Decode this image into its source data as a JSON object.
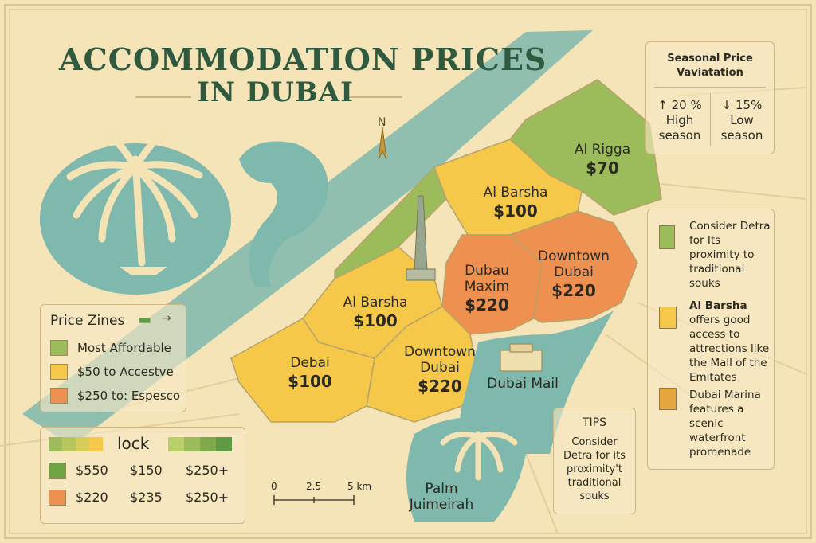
{
  "title": {
    "line1": "ACCOMMODATION PRICES",
    "line2": "IN DUBAI"
  },
  "compass": {
    "label": "N"
  },
  "districts": [
    {
      "id": "al-rigga",
      "name": "Al Rigga",
      "price": "$70",
      "color": "#9cbb5a"
    },
    {
      "id": "al-barsha-north",
      "name": "Al Barsha",
      "price": "$100",
      "color": "#f5c84a"
    },
    {
      "id": "dubau-maxim",
      "name": "Dubau\nMaxim",
      "price": "$220",
      "color": "#ee9150"
    },
    {
      "id": "downtown-east",
      "name": "Downtown\nDubai",
      "price": "$220",
      "color": "#ee9150"
    },
    {
      "id": "al-barsha-mid",
      "name": "Al Barsha",
      "price": "$100",
      "color": "#f5c84a"
    },
    {
      "id": "debai",
      "name": "Debai",
      "price": "$100",
      "color": "#f5c84a"
    },
    {
      "id": "downtown-south",
      "name": "Downtown\nDubai",
      "price": "$220",
      "color": "#f5c84a"
    }
  ],
  "landmarks": {
    "mall": "Dubai Mail",
    "palm": "Palm\nJuimeirah"
  },
  "price_zones": {
    "title": "Price Zines",
    "items": [
      {
        "label": "Most Affordable",
        "color": "#9cbb5a"
      },
      {
        "label": "$50 to Accestve",
        "color": "#f5c84a"
      },
      {
        "label": "$250 to: Espesco",
        "color": "#ee9150"
      }
    ]
  },
  "price_grid": {
    "header": "lock",
    "bar_colors_left": [
      "#9cbb5a",
      "#b9c660",
      "#d6cc5a",
      "#f5c84a"
    ],
    "bar_colors_right": [
      "#b9cf6a",
      "#9cbb5a",
      "#7fa94c",
      "#5f9a45"
    ],
    "rows": [
      {
        "color": "#6fa445",
        "values": [
          "$550",
          "$150",
          "$250+"
        ]
      },
      {
        "color": "#ee9150",
        "values": [
          "$220",
          "$235",
          "$250+"
        ]
      }
    ]
  },
  "seasonal": {
    "title": "Seasonal Price\nVaviatation",
    "high": {
      "value": "20 %",
      "label": "High\nseason",
      "arrow": "↑"
    },
    "low": {
      "value": "15%",
      "label": "Low\nseason",
      "arrow": "↓"
    }
  },
  "tips_side": [
    {
      "icon": "building-icon",
      "color": "#9cbb5a",
      "text": "Consider Detra for Its proximity to traditional souks",
      "bold": ""
    },
    {
      "icon": "building-icon",
      "color": "#f5c84a",
      "text": " offers good access to attrections like the Mall of the Emitates",
      "bold": "Al Barsha"
    },
    {
      "icon": "building-icon",
      "color": "#e6a640",
      "text": "Dubai Marina features a scenic waterfront promenade",
      "bold": ""
    }
  ],
  "tips_box": {
    "title": "TIPS",
    "text": "Consider\nDetra for its\nproximity't\ntraditional\nsouks"
  },
  "scale": {
    "labels": [
      "0",
      "2.5",
      "5 km"
    ]
  }
}
